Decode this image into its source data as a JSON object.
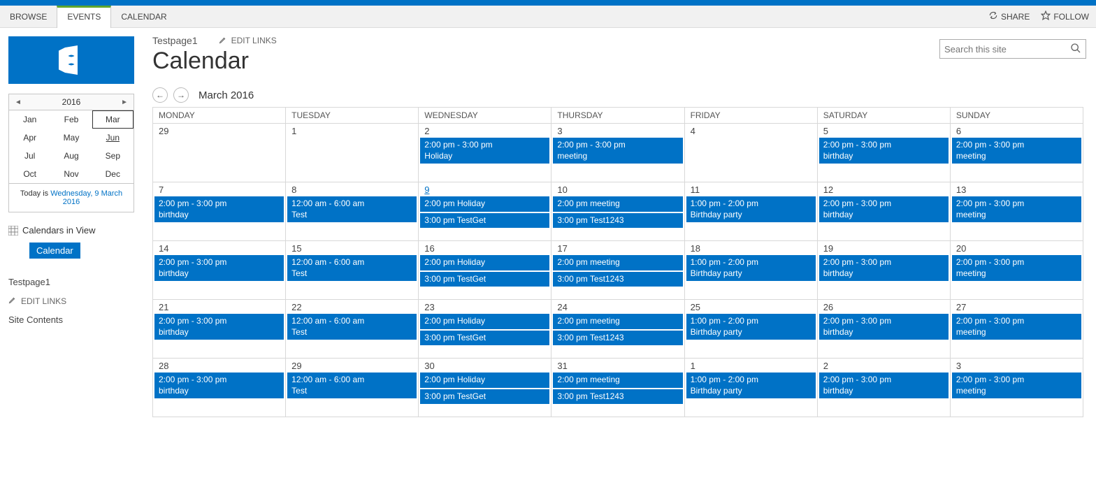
{
  "colors": {
    "brand": "#0072c6",
    "ribbon_bg": "#f1f1f1",
    "active_tab_accent": "#5fa52e"
  },
  "ribbon": {
    "tabs": [
      {
        "label": "BROWSE",
        "active": false
      },
      {
        "label": "EVENTS",
        "active": true
      },
      {
        "label": "CALENDAR",
        "active": false
      }
    ],
    "actions": {
      "share": "SHARE",
      "follow": "FOLLOW"
    }
  },
  "search": {
    "placeholder": "Search this site"
  },
  "breadcrumb": "Testpage1",
  "edit_links_label": "EDIT LINKS",
  "page_title": "Calendar",
  "mini_cal": {
    "year": "2016",
    "months": [
      {
        "label": "Jan"
      },
      {
        "label": "Feb"
      },
      {
        "label": "Mar",
        "selected": true
      },
      {
        "label": "Apr"
      },
      {
        "label": "May"
      },
      {
        "label": "Jun",
        "underline": true
      },
      {
        "label": "Jul"
      },
      {
        "label": "Aug"
      },
      {
        "label": "Sep"
      },
      {
        "label": "Oct"
      },
      {
        "label": "Nov"
      },
      {
        "label": "Dec"
      }
    ],
    "today_prefix": "Today is ",
    "today_link": "Wednesday, 9 March 2016"
  },
  "sidebar": {
    "calendars_in_view": "Calendars in View",
    "calendar_btn": "Calendar",
    "nav_links": [
      "Testpage1"
    ],
    "edit_links": "EDIT LINKS",
    "site_contents": "Site Contents"
  },
  "calendar": {
    "current_label": "March 2016",
    "day_headers": [
      "MONDAY",
      "TUESDAY",
      "WEDNESDAY",
      "THURSDAY",
      "FRIDAY",
      "SATURDAY",
      "SUNDAY"
    ],
    "weeks": [
      [
        {
          "num": "29",
          "events": []
        },
        {
          "num": "1",
          "events": []
        },
        {
          "num": "2",
          "events": [
            {
              "time": "2:00 pm - 3:00 pm",
              "title": "Holiday",
              "two_line": true
            }
          ]
        },
        {
          "num": "3",
          "events": [
            {
              "time": "2:00 pm - 3:00 pm",
              "title": "meeting",
              "two_line": true
            }
          ]
        },
        {
          "num": "4",
          "events": []
        },
        {
          "num": "5",
          "events": [
            {
              "time": "2:00 pm - 3:00 pm",
              "title": "birthday",
              "two_line": true
            }
          ]
        },
        {
          "num": "6",
          "events": [
            {
              "time": "2:00 pm - 3:00 pm",
              "title": "meeting",
              "two_line": true
            }
          ]
        }
      ],
      [
        {
          "num": "7",
          "events": [
            {
              "time": "2:00 pm - 3:00 pm",
              "title": "birthday",
              "two_line": true
            }
          ]
        },
        {
          "num": "8",
          "events": [
            {
              "time": "12:00 am - 6:00 am",
              "title": "Test",
              "two_line": true
            }
          ]
        },
        {
          "num": "9",
          "today": true,
          "events": [
            {
              "time": "2:00 pm",
              "title": "Holiday"
            },
            {
              "time": "3:00 pm",
              "title": "TestGet"
            }
          ]
        },
        {
          "num": "10",
          "events": [
            {
              "time": "2:00 pm",
              "title": "meeting"
            },
            {
              "time": "3:00 pm",
              "title": "Test1243"
            }
          ]
        },
        {
          "num": "11",
          "events": [
            {
              "time": "1:00 pm - 2:00 pm",
              "title": "Birthday party",
              "two_line": true
            }
          ]
        },
        {
          "num": "12",
          "events": [
            {
              "time": "2:00 pm - 3:00 pm",
              "title": "birthday",
              "two_line": true
            }
          ]
        },
        {
          "num": "13",
          "events": [
            {
              "time": "2:00 pm - 3:00 pm",
              "title": "meeting",
              "two_line": true
            }
          ]
        }
      ],
      [
        {
          "num": "14",
          "events": [
            {
              "time": "2:00 pm - 3:00 pm",
              "title": "birthday",
              "two_line": true
            }
          ]
        },
        {
          "num": "15",
          "events": [
            {
              "time": "12:00 am - 6:00 am",
              "title": "Test",
              "two_line": true
            }
          ]
        },
        {
          "num": "16",
          "events": [
            {
              "time": "2:00 pm",
              "title": "Holiday"
            },
            {
              "time": "3:00 pm",
              "title": "TestGet"
            }
          ]
        },
        {
          "num": "17",
          "events": [
            {
              "time": "2:00 pm",
              "title": "meeting"
            },
            {
              "time": "3:00 pm",
              "title": "Test1243"
            }
          ]
        },
        {
          "num": "18",
          "events": [
            {
              "time": "1:00 pm - 2:00 pm",
              "title": "Birthday party",
              "two_line": true
            }
          ]
        },
        {
          "num": "19",
          "events": [
            {
              "time": "2:00 pm - 3:00 pm",
              "title": "birthday",
              "two_line": true
            }
          ]
        },
        {
          "num": "20",
          "events": [
            {
              "time": "2:00 pm - 3:00 pm",
              "title": "meeting",
              "two_line": true
            }
          ]
        }
      ],
      [
        {
          "num": "21",
          "events": [
            {
              "time": "2:00 pm - 3:00 pm",
              "title": "birthday",
              "two_line": true
            }
          ]
        },
        {
          "num": "22",
          "events": [
            {
              "time": "12:00 am - 6:00 am",
              "title": "Test",
              "two_line": true
            }
          ]
        },
        {
          "num": "23",
          "events": [
            {
              "time": "2:00 pm",
              "title": "Holiday"
            },
            {
              "time": "3:00 pm",
              "title": "TestGet"
            }
          ]
        },
        {
          "num": "24",
          "events": [
            {
              "time": "2:00 pm",
              "title": "meeting"
            },
            {
              "time": "3:00 pm",
              "title": "Test1243"
            }
          ]
        },
        {
          "num": "25",
          "events": [
            {
              "time": "1:00 pm - 2:00 pm",
              "title": "Birthday party",
              "two_line": true
            }
          ]
        },
        {
          "num": "26",
          "events": [
            {
              "time": "2:00 pm - 3:00 pm",
              "title": "birthday",
              "two_line": true
            }
          ]
        },
        {
          "num": "27",
          "events": [
            {
              "time": "2:00 pm - 3:00 pm",
              "title": "meeting",
              "two_line": true
            }
          ]
        }
      ],
      [
        {
          "num": "28",
          "events": [
            {
              "time": "2:00 pm - 3:00 pm",
              "title": "birthday",
              "two_line": true
            }
          ]
        },
        {
          "num": "29",
          "events": [
            {
              "time": "12:00 am - 6:00 am",
              "title": "Test",
              "two_line": true
            }
          ]
        },
        {
          "num": "30",
          "events": [
            {
              "time": "2:00 pm",
              "title": "Holiday"
            },
            {
              "time": "3:00 pm",
              "title": "TestGet"
            }
          ]
        },
        {
          "num": "31",
          "events": [
            {
              "time": "2:00 pm",
              "title": "meeting"
            },
            {
              "time": "3:00 pm",
              "title": "Test1243"
            }
          ]
        },
        {
          "num": "1",
          "events": [
            {
              "time": "1:00 pm - 2:00 pm",
              "title": "Birthday party",
              "two_line": true
            }
          ]
        },
        {
          "num": "2",
          "events": [
            {
              "time": "2:00 pm - 3:00 pm",
              "title": "birthday",
              "two_line": true
            }
          ]
        },
        {
          "num": "3",
          "events": [
            {
              "time": "2:00 pm - 3:00 pm",
              "title": "meeting",
              "two_line": true
            }
          ]
        }
      ]
    ]
  }
}
